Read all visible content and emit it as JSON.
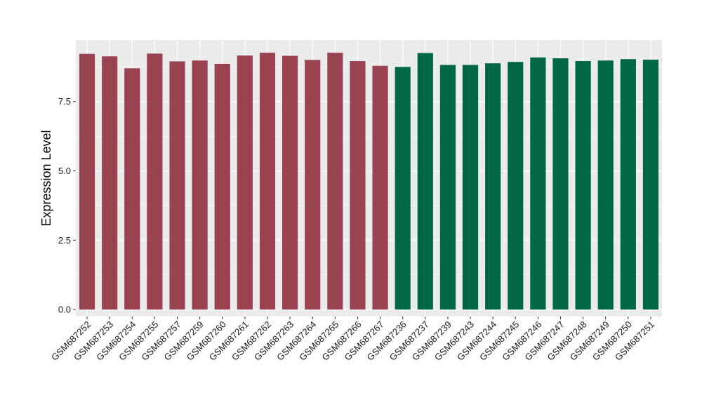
{
  "chart_data": {
    "type": "bar",
    "title": "",
    "xlabel": "",
    "ylabel": "Expression Level",
    "ylim": [
      -0.25,
      9.72
    ],
    "yticks": [
      0.0,
      2.5,
      5.0,
      7.5
    ],
    "ytick_labels": [
      "0.0",
      "2.5",
      "5.0",
      "7.5"
    ],
    "grid": true,
    "legend": "none",
    "categories": [
      "GSM687252",
      "GSM687253",
      "GSM687254",
      "GSM687255",
      "GSM687257",
      "GSM687259",
      "GSM687260",
      "GSM687261",
      "GSM687262",
      "GSM687263",
      "GSM687264",
      "GSM687265",
      "GSM687266",
      "GSM687267",
      "GSM687236",
      "GSM687237",
      "GSM687239",
      "GSM687243",
      "GSM687244",
      "GSM687245",
      "GSM687246",
      "GSM687247",
      "GSM687248",
      "GSM687249",
      "GSM687250",
      "GSM687251"
    ],
    "values": [
      9.22,
      9.13,
      8.7,
      9.23,
      8.95,
      8.98,
      8.86,
      9.16,
      9.26,
      9.15,
      9.0,
      9.26,
      8.96,
      8.79,
      8.75,
      9.25,
      8.82,
      8.82,
      8.88,
      8.93,
      9.09,
      9.06,
      8.96,
      8.98,
      9.03,
      9.01
    ],
    "bar_colors": [
      "#994350",
      "#994350",
      "#994350",
      "#994350",
      "#994350",
      "#994350",
      "#994350",
      "#994350",
      "#994350",
      "#994350",
      "#994350",
      "#994350",
      "#994350",
      "#994350",
      "#006745",
      "#006745",
      "#006745",
      "#006745",
      "#006745",
      "#006745",
      "#006745",
      "#006745",
      "#006745",
      "#006745",
      "#006745",
      "#006745"
    ],
    "panel_color": "#ebebeb",
    "grid_color": "#ffffff"
  }
}
